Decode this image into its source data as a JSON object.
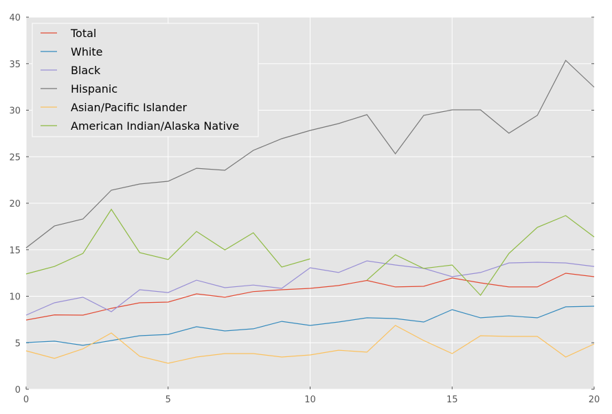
{
  "chart_data": {
    "type": "line",
    "title": "",
    "xlabel": "",
    "ylabel": "",
    "xlim": [
      0,
      20
    ],
    "ylim": [
      0,
      40
    ],
    "x_ticks": [
      "0",
      "5",
      "10",
      "15",
      "20"
    ],
    "y_ticks": [
      "0",
      "5",
      "10",
      "15",
      "20",
      "25",
      "30",
      "35",
      "40"
    ],
    "grid": true,
    "legend_position": "top-left",
    "x": [
      0,
      1,
      2,
      3,
      4,
      5,
      6,
      7,
      8,
      9,
      10,
      11,
      12,
      13,
      14,
      15,
      16,
      17,
      18,
      19,
      20
    ],
    "series": [
      {
        "name": "Total",
        "color": "#e24a33",
        "values": [
          7.45,
          8.0,
          7.97,
          8.7,
          9.3,
          9.37,
          10.26,
          9.9,
          10.5,
          10.7,
          10.85,
          11.15,
          11.7,
          11.0,
          11.07,
          11.96,
          11.44,
          11.0,
          11.0,
          12.47,
          12.1
        ]
      },
      {
        "name": "White",
        "color": "#348abd",
        "values": [
          5.02,
          5.17,
          4.72,
          5.24,
          5.76,
          5.9,
          6.72,
          6.27,
          6.5,
          7.3,
          6.86,
          7.23,
          7.68,
          7.6,
          7.23,
          8.56,
          7.68,
          7.9,
          7.68,
          8.86,
          8.93
        ]
      },
      {
        "name": "Black",
        "color": "#988ed5",
        "values": [
          7.97,
          9.3,
          9.9,
          8.34,
          10.7,
          10.4,
          11.73,
          10.92,
          11.2,
          10.85,
          13.06,
          12.55,
          13.8,
          13.36,
          13.0,
          12.1,
          12.55,
          13.58,
          13.65,
          13.58,
          13.2
        ]
      },
      {
        "name": "Hispanic",
        "color": "#777777",
        "values": [
          15.2,
          17.56,
          18.3,
          21.4,
          22.07,
          22.36,
          23.76,
          23.54,
          25.68,
          26.94,
          27.82,
          28.56,
          29.52,
          25.31,
          29.45,
          30.04,
          30.04,
          27.53,
          29.45,
          35.35,
          32.47
        ]
      },
      {
        "name": "Asian/Pacific Islander",
        "color": "#fbc15e",
        "values": [
          4.13,
          3.32,
          4.35,
          6.05,
          3.54,
          2.8,
          3.47,
          3.84,
          3.84,
          3.47,
          3.69,
          4.2,
          3.99,
          6.86,
          5.24,
          3.84,
          5.76,
          5.68,
          5.68,
          3.47,
          4.87
        ]
      },
      {
        "name": "American Indian/Alaska Native",
        "color": "#8eba42",
        "values": [
          12.4,
          13.2,
          14.6,
          19.34,
          14.69,
          13.95,
          16.97,
          14.98,
          16.83,
          13.14,
          14.02,
          null,
          11.73,
          14.46,
          12.99,
          13.36,
          10.1,
          14.6,
          17.4,
          18.67,
          16.38
        ]
      }
    ]
  }
}
